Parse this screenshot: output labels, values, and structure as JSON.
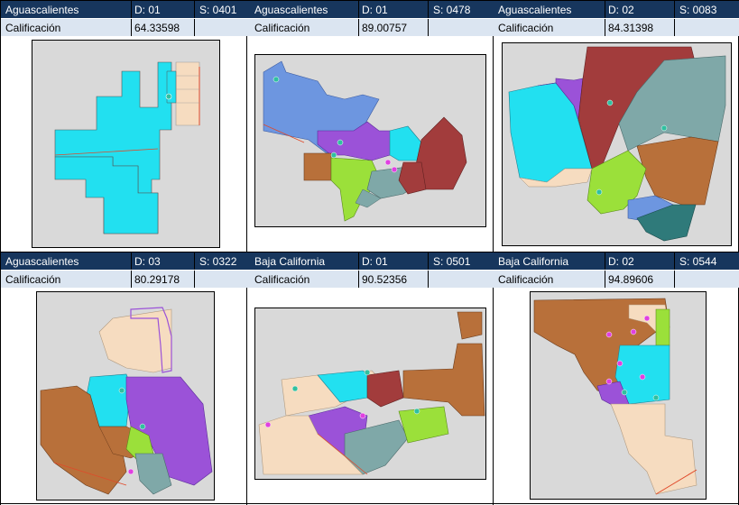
{
  "header_label": "Calificación",
  "panels": [
    {
      "state": "Aguascalientes",
      "district": "D: 01",
      "section": "S: 0401",
      "score": "64.33598"
    },
    {
      "state": "Aguascalientes",
      "district": "D: 01",
      "section": "S: 0478",
      "score": "89.00757"
    },
    {
      "state": "Aguascalientes",
      "district": "D: 02",
      "section": "S: 0083",
      "score": "84.31398"
    },
    {
      "state": "Aguascalientes",
      "district": "D: 03",
      "section": "S: 0322",
      "score": "80.29178"
    },
    {
      "state": "Baja California",
      "district": "D: 01",
      "section": "S: 0501",
      "score": "90.52356"
    },
    {
      "state": "Baja California",
      "district": "D: 02",
      "section": "S: 0544",
      "score": "94.89606"
    }
  ],
  "colors": {
    "header_bg": "#17365d",
    "subheader_bg": "#dbe5f1",
    "map_bg": "#d9d9d9",
    "cyan": "#22e0f0",
    "blue": "#6d96e0",
    "purple": "#9b52d8",
    "brown": "#b8703a",
    "darkred": "#a23c3c",
    "teal": "#7fa8a8",
    "green": "#9be03a",
    "beige": "#f6dcc0",
    "darkteal": "#2f7a7a",
    "boundary": "#e04a2a",
    "marker_pink": "#e040e0",
    "marker_teal": "#30c0a0"
  }
}
